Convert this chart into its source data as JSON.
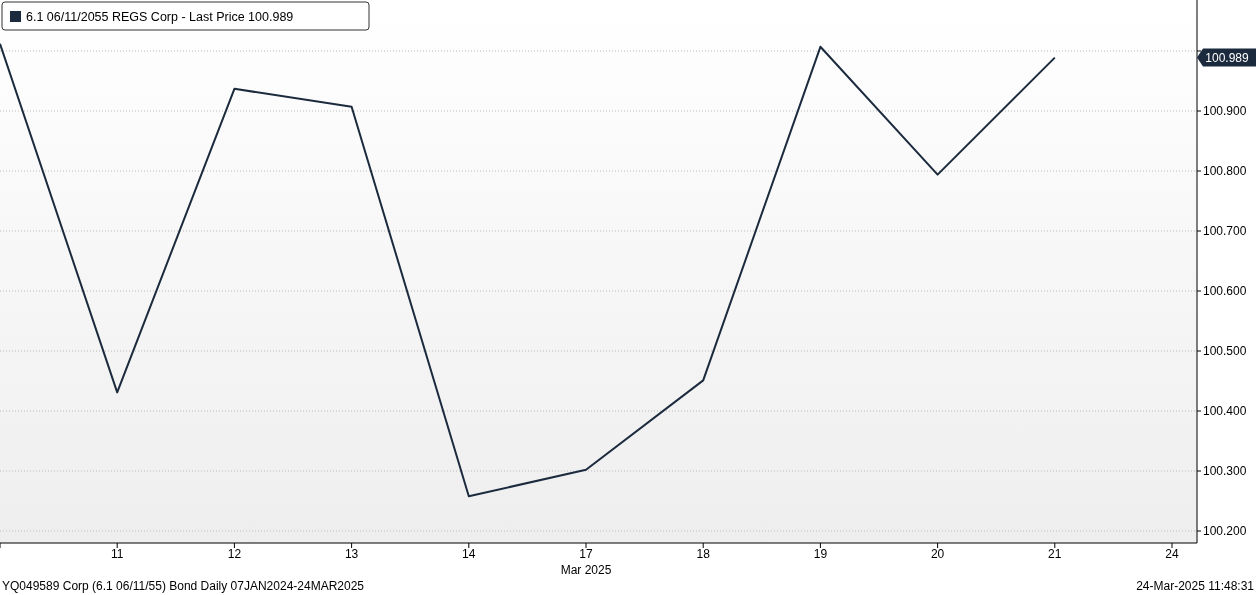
{
  "chart_data": {
    "type": "line",
    "categories": [
      null,
      "11",
      "12",
      "13",
      "14",
      "17",
      "18",
      "19",
      "20",
      "21",
      "24"
    ],
    "series": [
      {
        "name": "6.1 06/11/2055 REGS Corp - Last Price 100.989",
        "color": "#1b2a3d",
        "values": [
          101.012,
          100.431,
          100.937,
          100.907,
          100.258,
          100.302,
          100.451,
          101.007,
          100.794,
          100.989,
          null
        ]
      }
    ],
    "ylim": [
      100.18,
      101.085
    ],
    "yticks": [
      {
        "value": 100.2,
        "label": "100.200"
      },
      {
        "value": 100.3,
        "label": "100.300"
      },
      {
        "value": 100.4,
        "label": "100.400"
      },
      {
        "value": 100.5,
        "label": "100.500"
      },
      {
        "value": 100.6,
        "label": "100.600"
      },
      {
        "value": 100.7,
        "label": "100.700"
      },
      {
        "value": 100.8,
        "label": "100.800"
      },
      {
        "value": 100.9,
        "label": "100.900"
      },
      {
        "value": 101,
        "label": null
      }
    ],
    "grid": "y",
    "legend": "top left",
    "marker": "none",
    "line_style": "solid",
    "annotations": [
      "100.989",
      "Mar 2025",
      "YQ049589 Corp (6.1 06/11/55) Bond  Daily 07JAN2024-24MAR2025",
      "24-Mar-2025 11:48:31"
    ]
  }
}
